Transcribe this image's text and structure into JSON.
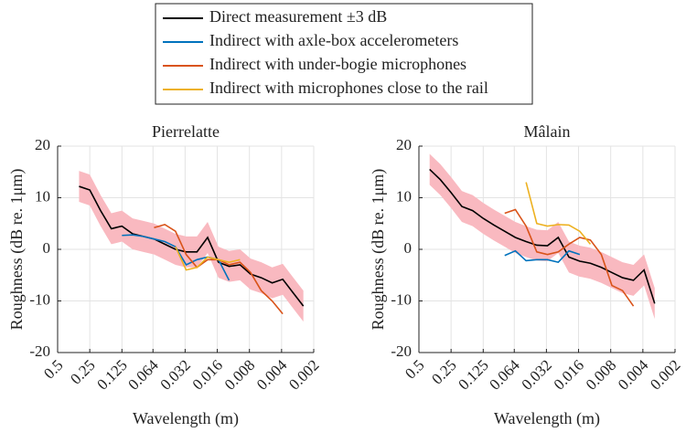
{
  "chart_data": [
    {
      "type": "line",
      "title": "Pierrelatte",
      "x_label": "Wavelength (m)",
      "y_label": "Roughness (dB re. 1μm)",
      "x": [
        0.315,
        0.25,
        0.198,
        0.157,
        0.125,
        0.0992,
        0.0787,
        0.0625,
        0.0496,
        0.0394,
        0.0313,
        0.0248,
        0.0197,
        0.0156,
        0.0124,
        0.0098,
        0.0078,
        0.0062,
        0.0049,
        0.0039,
        0.0031,
        0.0025
      ],
      "series": [
        {
          "name": "Direct measurement ±3 dB",
          "color": "#000000",
          "error": 3,
          "error_color": "#f9b9c0",
          "values": [
            12.2,
            11.5,
            7.5,
            4,
            4.5,
            3,
            2.5,
            2,
            1,
            0,
            -0.5,
            -0.5,
            2.3,
            -2.5,
            -3.3,
            -3,
            -4.8,
            -5.5,
            -6.5,
            -5.8,
            -8.5,
            -11
          ]
        },
        {
          "name": "Indirect with axle-box accelerometers",
          "color": "#0072bd",
          "values": [
            null,
            null,
            null,
            null,
            2.7,
            2.8,
            2.5,
            2,
            1.5,
            0.5,
            -3,
            -2,
            -1.5,
            -2,
            -6,
            null,
            null,
            null,
            null,
            null,
            null,
            null
          ]
        },
        {
          "name": "Indirect with under-bogie microphones",
          "color": "#d95319",
          "values": [
            null,
            null,
            null,
            null,
            null,
            null,
            null,
            4.2,
            4.8,
            3.5,
            -1,
            -3.5,
            -2,
            -2,
            -3,
            -2.5,
            -4.5,
            -8,
            -10,
            -12.5,
            null,
            null
          ]
        },
        {
          "name": "Indirect with microphones close to the rail",
          "color": "#edb120",
          "values": [
            null,
            null,
            null,
            null,
            null,
            null,
            null,
            null,
            null,
            0.5,
            -4,
            -3.5,
            -1.5,
            -2,
            -2.5,
            -2,
            null,
            null,
            null,
            null,
            null,
            null
          ]
        }
      ],
      "xlim": [
        0.5,
        0.002
      ],
      "xscale": "log",
      "xticks": [
        0.5,
        0.25,
        0.125,
        0.064,
        0.032,
        0.016,
        0.008,
        0.004,
        0.002
      ],
      "ylim": [
        -20,
        20
      ],
      "yticks": [
        -20,
        -10,
        0,
        10,
        20
      ],
      "grid": true
    },
    {
      "type": "line",
      "title": "Mâlain",
      "x_label": "Wavelength (m)",
      "y_label": "Roughness (dB re. 1μm)",
      "x": [
        0.397,
        0.315,
        0.25,
        0.198,
        0.157,
        0.125,
        0.0992,
        0.0787,
        0.0625,
        0.0496,
        0.0394,
        0.0313,
        0.0248,
        0.0197,
        0.0156,
        0.0124,
        0.0098,
        0.0078,
        0.0062,
        0.0049,
        0.0039,
        0.0031
      ],
      "series": [
        {
          "color": "#000000",
          "error": 3,
          "error_color": "#f9b9c0",
          "values": [
            15.5,
            13.5,
            11,
            8.3,
            7.5,
            6,
            4.7,
            3.5,
            2.3,
            1.5,
            0.8,
            0.7,
            2.3,
            -1.5,
            -2.3,
            -2.7,
            -3.5,
            -4.5,
            -5.5,
            -6,
            -4,
            -10.5
          ]
        },
        {
          "color": "#0072bd",
          "values": [
            null,
            null,
            null,
            null,
            null,
            null,
            null,
            -1.2,
            -0.3,
            -2.2,
            -2,
            -2,
            -2.5,
            -0.3,
            -1,
            null,
            null,
            null,
            null,
            null,
            null,
            null
          ]
        },
        {
          "color": "#d95319",
          "values": [
            null,
            null,
            null,
            null,
            null,
            null,
            null,
            7,
            7.7,
            4.5,
            -0.5,
            -1,
            -0.5,
            1,
            2.3,
            1.8,
            -1,
            -7,
            -8,
            -11,
            null,
            null
          ]
        },
        {
          "color": "#edb120",
          "values": [
            null,
            null,
            null,
            null,
            null,
            null,
            null,
            null,
            null,
            13,
            5,
            4.5,
            4.8,
            4.7,
            3.5,
            1,
            null,
            null,
            null,
            null,
            null,
            null
          ]
        }
      ],
      "xlim": [
        0.5,
        0.002
      ],
      "xscale": "log",
      "xticks": [
        0.5,
        0.25,
        0.125,
        0.064,
        0.032,
        0.016,
        0.008,
        0.004,
        0.002
      ],
      "ylim": [
        -20,
        20
      ],
      "yticks": [
        -20,
        -10,
        0,
        10,
        20
      ],
      "grid": true
    }
  ]
}
